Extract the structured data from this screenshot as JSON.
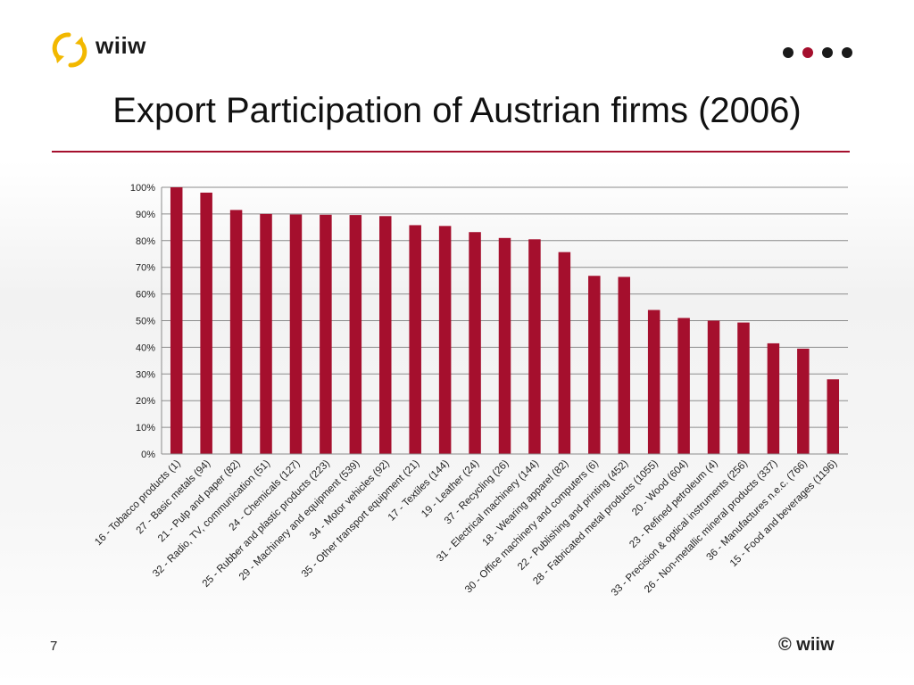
{
  "header": {
    "brand": "wiiw",
    "title": "Export Participation of Austrian firms (2006)",
    "accent_color": "#a50f2d",
    "nav_dots": [
      "dark",
      "accent",
      "dark",
      "dark"
    ]
  },
  "footer": {
    "page_number": "7",
    "copyright": "© wiiw"
  },
  "chart_data": {
    "type": "bar",
    "title": "",
    "xlabel": "",
    "ylabel": "",
    "ylim": [
      0,
      100
    ],
    "yticks": [
      "0%",
      "10%",
      "20%",
      "30%",
      "40%",
      "50%",
      "60%",
      "70%",
      "80%",
      "90%",
      "100%"
    ],
    "grid": true,
    "legend": "none",
    "bar_color": "#a50f2d",
    "categories": [
      "16 - Tobacco products (1)",
      "27 - Basic metals (94)",
      "21 - Pulp and paper (82)",
      "32 - Radio, TV, communication (51)",
      "24 - Chemicals  (127)",
      "25 - Rubber and plastic products (223)",
      "29 - Machinery and equipment (539)",
      "34 - Motor vehicles (92)",
      "35 - Other transport equipment (21)",
      "17 - Textiles (144)",
      "19 - Leather (24)",
      "37 - Recycling (26)",
      "31 - Electrical machinery  (144)",
      "18 - Wearing apparel (82)",
      "30 - Office machinery and computers (6)",
      "22 - Publishing and printing (452)",
      "28 - Fabricated metal products (1055)",
      "20 - Wood (604)",
      "23 - Refined petroleum (4)",
      "33 - Precision & optical instruments (256)",
      "26 - Non-metallic mineral products (337)",
      "36 - Manufactures n.e.c. (766)",
      "15 - Food and beverages (1196)"
    ],
    "values": [
      100,
      98,
      91.5,
      90,
      89.8,
      89.7,
      89.6,
      89.2,
      85.8,
      85.5,
      83.2,
      81,
      80.5,
      75.7,
      66.8,
      66.4,
      54,
      51,
      50,
      49.3,
      41.5,
      39.5,
      28
    ]
  }
}
